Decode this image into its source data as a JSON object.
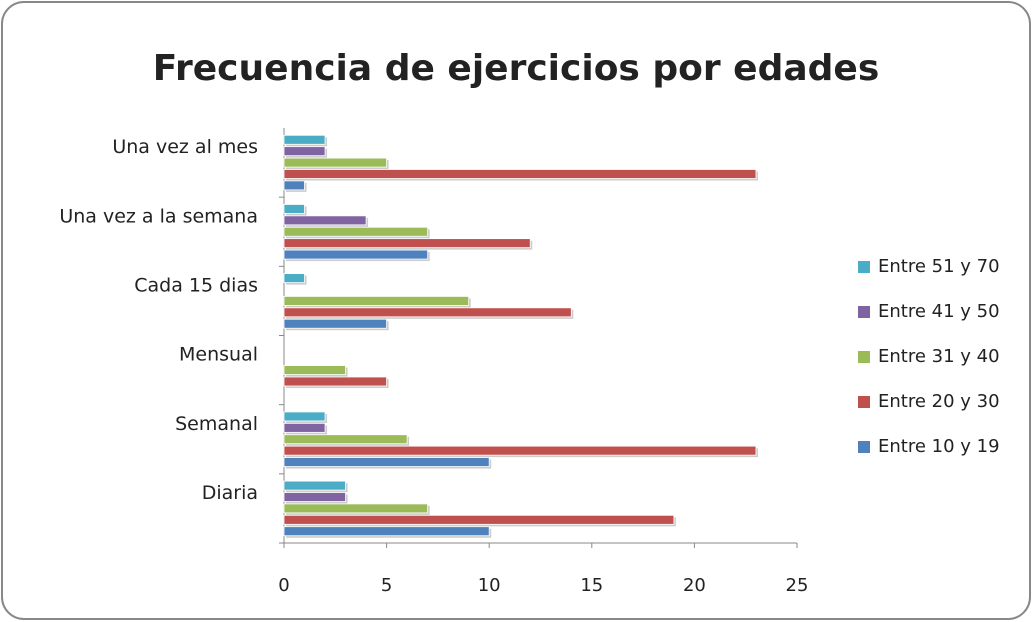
{
  "chart_data": {
    "type": "bar",
    "orientation": "horizontal",
    "title": "Frecuencia de ejercicios por edades",
    "categories": [
      "Diaria",
      "Semanal",
      "Mensual",
      "Cada 15 dias",
      "Una vez a la semana",
      "Una vez al mes"
    ],
    "series": [
      {
        "name": "Entre 10 y 19",
        "color": "#4f81bd",
        "values": [
          10,
          10,
          0,
          5,
          7,
          1
        ]
      },
      {
        "name": "Entre 20 y 30",
        "color": "#c0504d",
        "values": [
          19,
          23,
          5,
          14,
          12,
          23
        ]
      },
      {
        "name": "Entre 31 y 40",
        "color": "#9bbb59",
        "values": [
          7,
          6,
          3,
          9,
          7,
          5
        ]
      },
      {
        "name": "Entre 41 y 50",
        "color": "#8064a2",
        "values": [
          3,
          2,
          0,
          0,
          4,
          2
        ]
      },
      {
        "name": "Entre 51 y 70",
        "color": "#4bacc6",
        "values": [
          3,
          2,
          0,
          1,
          1,
          2
        ]
      }
    ],
    "xlim": [
      0,
      25
    ],
    "xticks": [
      0,
      5,
      10,
      15,
      20,
      25
    ],
    "legend": "right"
  }
}
